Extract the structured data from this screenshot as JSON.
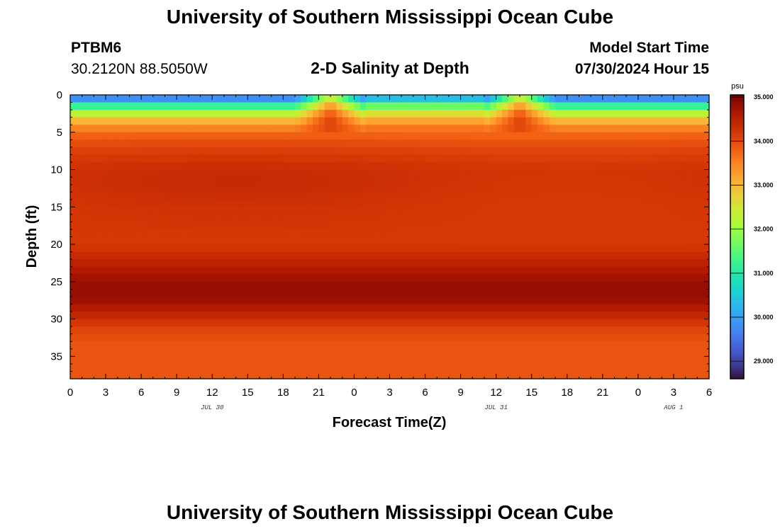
{
  "header": {
    "title": "University of Southern Mississippi Ocean Cube",
    "station_id": "PTBM6",
    "station_coords": "30.2120N  88.5050W",
    "plot_title": "2-D Salinity at Depth",
    "start_label": "Model Start Time",
    "start_value": "07/30/2024 Hour 15"
  },
  "footer": {
    "title": "University of Southern Mississippi Ocean Cube"
  },
  "chart_data": {
    "type": "heatmap",
    "title": "2-D Salinity at Depth",
    "xlabel": "Forecast Time(Z)",
    "ylabel": "Depth (ft)",
    "x_range_hours": [
      0,
      54
    ],
    "y_range_ft": [
      0,
      38
    ],
    "x_tick_labels": [
      "0",
      "3",
      "6",
      "9",
      "12",
      "15",
      "18",
      "21",
      "0",
      "3",
      "6",
      "9",
      "12",
      "15",
      "18",
      "21",
      "0",
      "3",
      "6"
    ],
    "x_date_labels": [
      {
        "label": "JUL 30",
        "at_hour": 12
      },
      {
        "label": "JUL 31",
        "at_hour": 36
      },
      {
        "label": "AUG 1",
        "at_hour": 51
      }
    ],
    "y_ticks": [
      0,
      5,
      10,
      15,
      20,
      25,
      30,
      35
    ],
    "colorbar": {
      "unit": "psu",
      "range": [
        28.6,
        35.05
      ],
      "ticks": [
        "29.000",
        "30.000",
        "31.000",
        "32.000",
        "33.000",
        "34.000",
        "35.000"
      ]
    },
    "salinity_profile_ft": [
      {
        "depth": 0,
        "psu": 29.0
      },
      {
        "depth": 1,
        "psu": 30.6
      },
      {
        "depth": 2,
        "psu": 31.8
      },
      {
        "depth": 3,
        "psu": 32.7
      },
      {
        "depth": 4,
        "psu": 33.3
      },
      {
        "depth": 5,
        "psu": 33.7
      },
      {
        "depth": 7,
        "psu": 34.0
      },
      {
        "depth": 10,
        "psu": 34.2
      },
      {
        "depth": 15,
        "psu": 34.15
      },
      {
        "depth": 20,
        "psu": 34.15
      },
      {
        "depth": 22,
        "psu": 34.4
      },
      {
        "depth": 25,
        "psu": 34.8
      },
      {
        "depth": 27,
        "psu": 34.85
      },
      {
        "depth": 29,
        "psu": 34.5
      },
      {
        "depth": 31,
        "psu": 34.1
      },
      {
        "depth": 33,
        "psu": 33.9
      },
      {
        "depth": 38,
        "psu": 33.9
      }
    ],
    "grid": false,
    "legend": "colorbar-right"
  }
}
